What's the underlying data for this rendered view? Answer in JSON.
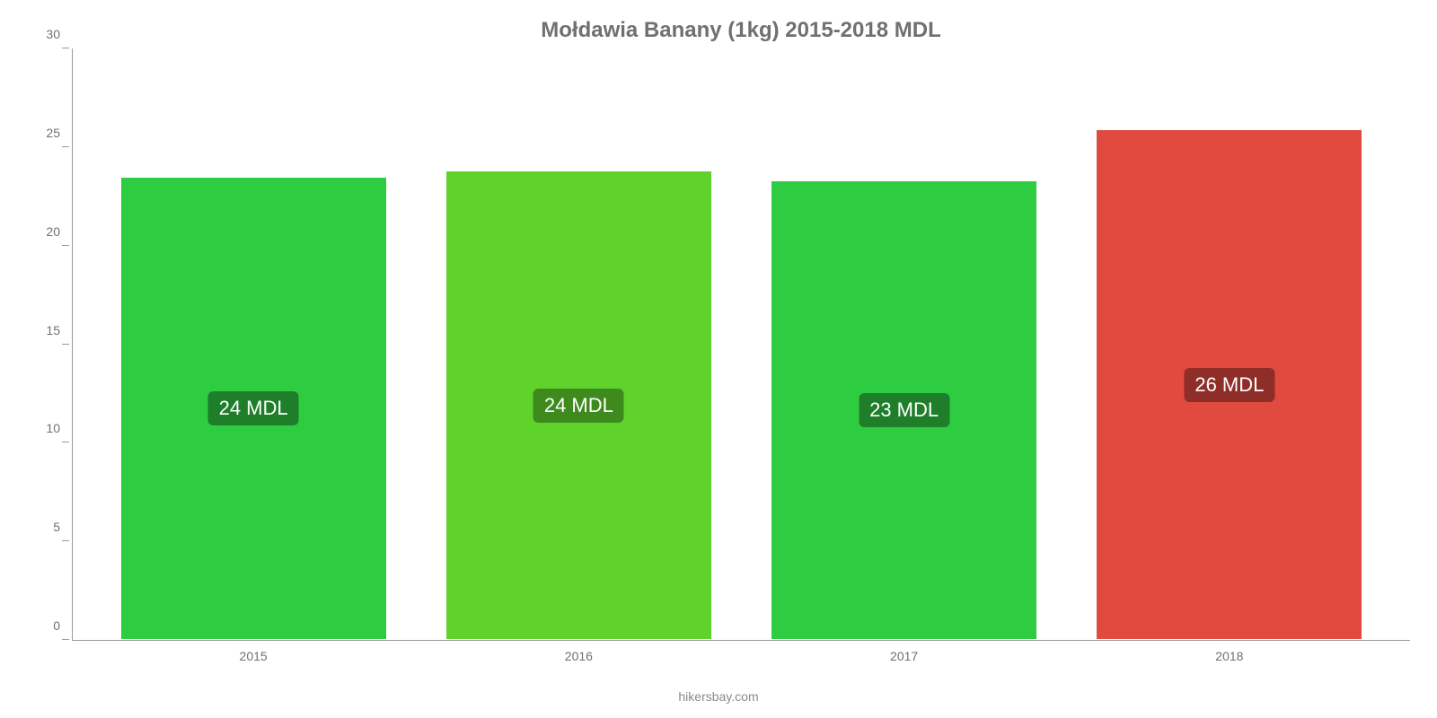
{
  "chart": {
    "type": "bar",
    "title": "Mołdawia Banany (1kg) 2015-2018 MDL",
    "title_color": "#707070",
    "title_fontsize": 24,
    "background_color": "#ffffff",
    "axis_color": "#9a9a9a",
    "tick_color": "#9a9a9a",
    "tick_label_color": "#707070",
    "bar_width_pct": 82,
    "label_fontsize": 22,
    "label_top_pct": 50,
    "y": {
      "min": 0,
      "max": 30,
      "ticks": [
        {
          "value": 0,
          "label": "0"
        },
        {
          "value": 5,
          "label": "5"
        },
        {
          "value": 10,
          "label": "10"
        },
        {
          "value": 15,
          "label": "15"
        },
        {
          "value": 20,
          "label": "20"
        },
        {
          "value": 25,
          "label": "25"
        },
        {
          "value": 30,
          "label": "30"
        }
      ]
    },
    "data": [
      {
        "category": "2015",
        "value": 23.5,
        "label": "24 MDL",
        "fill": "#2ecc40",
        "label_bg": "#1e7e2a"
      },
      {
        "category": "2016",
        "value": 23.8,
        "label": "24 MDL",
        "fill": "#5fd32c",
        "label_bg": "#3e8a1d"
      },
      {
        "category": "2017",
        "value": 23.3,
        "label": "23 MDL",
        "fill": "#2ecc40",
        "label_bg": "#1e7e2a"
      },
      {
        "category": "2018",
        "value": 25.9,
        "label": "26 MDL",
        "fill": "#e04a3f",
        "label_bg": "#8f2e28"
      }
    ],
    "source_text": "hikersbay.com",
    "source_color": "#8a8a8a"
  }
}
